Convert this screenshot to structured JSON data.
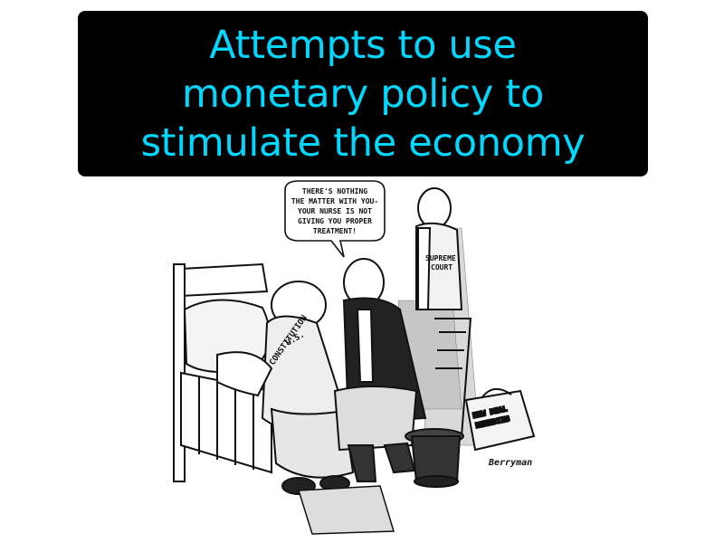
{
  "title": {
    "lines": [
      "Attempts to use",
      "monetary policy to",
      "stimulate the economy"
    ],
    "color": "#00d8ff",
    "background": "#000000"
  },
  "cartoon": {
    "speech_bubble": [
      "THERE'S NOTHING",
      "THE MATTER WITH YOU-",
      "YOUR NURSE IS NOT",
      "GIVING YOU PROPER",
      "TREATMENT!"
    ],
    "patient_label": [
      "U.S.",
      "CONSTITUTION"
    ],
    "nurse_label": [
      "SUPREME",
      "COURT"
    ],
    "bag_label": [
      "NEW DEAL",
      "REMEDIES"
    ],
    "signature": "Berryman"
  }
}
